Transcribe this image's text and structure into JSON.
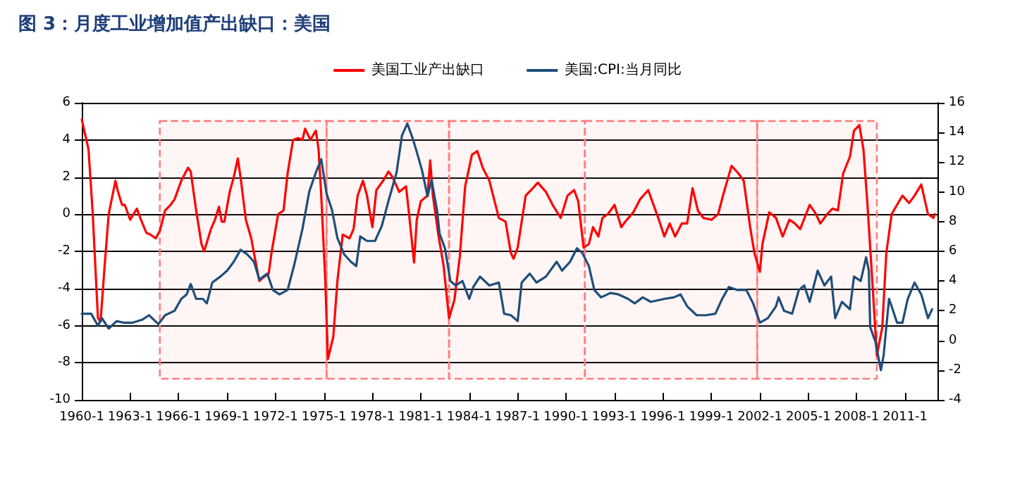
{
  "chart_data": {
    "type": "line",
    "title": "图 3：月度工业增加值产出缺口：美国",
    "xlim": [
      "1960-01",
      "2013-01"
    ],
    "xticks": [
      {
        "value": "1960-01",
        "label": "1960-1"
      },
      {
        "value": "1963-01",
        "label": "1963-1"
      },
      {
        "value": "1966-01",
        "label": "1966-1"
      },
      {
        "value": "1969-01",
        "label": "1969-1"
      },
      {
        "value": "1972-01",
        "label": "1972-1"
      },
      {
        "value": "1975-01",
        "label": "1975-1"
      },
      {
        "value": "1978-01",
        "label": "1978-1"
      },
      {
        "value": "1981-01",
        "label": "1981-1"
      },
      {
        "value": "1984-01",
        "label": "1984-1"
      },
      {
        "value": "1987-01",
        "label": "1987-1"
      },
      {
        "value": "1990-01",
        "label": "1990-1"
      },
      {
        "value": "1993-01",
        "label": "1993-1"
      },
      {
        "value": "1996-01",
        "label": "1996-1"
      },
      {
        "value": "1999-01",
        "label": "1999-1"
      },
      {
        "value": "2002-01",
        "label": "2002-1"
      },
      {
        "value": "2005-01",
        "label": "2005-1"
      },
      {
        "value": "2008-01",
        "label": "2008-1"
      },
      {
        "value": "2011-01",
        "label": "2011-1"
      }
    ],
    "ylim": [
      -10,
      6
    ],
    "yticks": [
      -10,
      -8,
      -6,
      -4,
      -2,
      0,
      2,
      4,
      6
    ],
    "y2lim": [
      -4,
      16
    ],
    "y2ticks": [
      -4,
      -2,
      0,
      2,
      4,
      6,
      8,
      10,
      12,
      14,
      16
    ],
    "grid": "y",
    "legend": "top",
    "marker": "none",
    "line_style": "solid",
    "bands": [
      {
        "axis": "x",
        "from": "1964-11",
        "to": "1975-03",
        "color": "#ff7f7f"
      },
      {
        "axis": "x",
        "from": "1975-03",
        "to": "1982-10",
        "color": "#ff7f7f"
      },
      {
        "axis": "x",
        "from": "1982-10",
        "to": "1991-03",
        "color": "#ff7f7f"
      },
      {
        "axis": "x",
        "from": "1991-03",
        "to": "2001-11",
        "color": "#ff7f7f"
      },
      {
        "axis": "x",
        "from": "2001-11",
        "to": "2009-04",
        "color": "#ff7f7f"
      }
    ],
    "series": [
      {
        "name": "美国工业产出缺口",
        "color": "#ff0000",
        "x": [
          "1960-01",
          "1960-06",
          "1960-09",
          "1961-01",
          "1961-03",
          "1961-06",
          "1961-09",
          "1962-02",
          "1962-04",
          "1962-07",
          "1962-09",
          "1963-01",
          "1963-06",
          "1963-09",
          "1964-01",
          "1964-04",
          "1964-08",
          "1964-11",
          "1965-03",
          "1965-07",
          "1965-10",
          "1966-03",
          "1966-08",
          "1966-10",
          "1967-02",
          "1967-06",
          "1967-08",
          "1968-01",
          "1968-04",
          "1968-07",
          "1968-09",
          "1968-11",
          "1969-03",
          "1969-06",
          "1969-09",
          "1969-11",
          "1970-03",
          "1970-07",
          "1970-09",
          "1971-01",
          "1971-04",
          "1971-08",
          "1971-10",
          "1972-03",
          "1972-07",
          "1972-10",
          "1973-02",
          "1973-06",
          "1973-09",
          "1973-11",
          "1974-03",
          "1974-07",
          "1974-09",
          "1974-11",
          "1975-02",
          "1975-04",
          "1975-08",
          "1975-11",
          "1976-03",
          "1976-08",
          "1976-11",
          "1977-02",
          "1977-06",
          "1977-09",
          "1978-01",
          "1978-04",
          "1978-09",
          "1979-01",
          "1979-04",
          "1979-09",
          "1980-02",
          "1980-04",
          "1980-08",
          "1980-10",
          "1981-01",
          "1981-06",
          "1981-08",
          "1981-10",
          "1982-02",
          "1982-06",
          "1982-10",
          "1983-02",
          "1983-06",
          "1983-10",
          "1984-03",
          "1984-07",
          "1984-11",
          "1985-04",
          "1985-11",
          "1986-04",
          "1986-08",
          "1986-10",
          "1987-01",
          "1987-07",
          "1987-11",
          "1988-04",
          "1988-10",
          "1989-03",
          "1989-09",
          "1990-02",
          "1990-07",
          "1990-10",
          "1991-02",
          "1991-06",
          "1991-09",
          "1992-01",
          "1992-04",
          "1992-08",
          "1993-01",
          "1993-06",
          "1993-09",
          "1994-03",
          "1994-08",
          "1995-02",
          "1995-06",
          "1995-10",
          "1996-02",
          "1996-06",
          "1996-10",
          "1997-03",
          "1997-07",
          "1997-11",
          "1998-03",
          "1998-07",
          "1999-01",
          "1999-06",
          "1999-10",
          "2000-04",
          "2000-09",
          "2001-01",
          "2001-06",
          "2001-09",
          "2002-01",
          "2002-03",
          "2002-08",
          "2003-01",
          "2003-06",
          "2003-11",
          "2004-03",
          "2004-07",
          "2005-02",
          "2005-06",
          "2005-10",
          "2006-03",
          "2006-07",
          "2006-11",
          "2007-03",
          "2007-08",
          "2007-11",
          "2008-03",
          "2008-06",
          "2008-09",
          "2009-01",
          "2009-04",
          "2009-08",
          "2009-11",
          "2010-03",
          "2010-07",
          "2010-11",
          "2011-04",
          "2011-08",
          "2012-01",
          "2012-06",
          "2012-10",
          "2012-11"
        ],
        "values": [
          5.1,
          3.5,
          0.2,
          -5.6,
          -5.8,
          -2.8,
          0,
          1.8,
          1.2,
          0.5,
          0.5,
          -0.3,
          0.3,
          -0.3,
          -1.0,
          -1.1,
          -1.3,
          -0.9,
          0.2,
          0.5,
          0.8,
          1.8,
          2.5,
          2.3,
          0.2,
          -1.6,
          -2.0,
          -0.8,
          -0.3,
          0.4,
          -0.4,
          -0.4,
          1.2,
          2.0,
          3.0,
          2.0,
          -0.3,
          -1.3,
          -2.1,
          -3.6,
          -3.4,
          -3.2,
          -2.1,
          0,
          0.2,
          2.2,
          4.0,
          4.1,
          4.0,
          4.6,
          4.0,
          4.5,
          3.5,
          1.0,
          -3.6,
          -7.8,
          -6.6,
          -3.6,
          -1.1,
          -1.3,
          -0.8,
          1.0,
          1.8,
          1.0,
          -0.7,
          1.3,
          1.8,
          2.3,
          2.0,
          1.2,
          1.5,
          0.2,
          -2.6,
          -0.3,
          0.7,
          1.0,
          2.9,
          1.0,
          -1.1,
          -2.8,
          -5.6,
          -4.6,
          -2.3,
          1.5,
          3.2,
          3.4,
          2.5,
          1.8,
          -0.2,
          -0.4,
          -2.1,
          -2.4,
          -1.8,
          1.0,
          1.3,
          1.7,
          1.2,
          0.5,
          -0.2,
          1.0,
          1.3,
          0.7,
          -1.8,
          -1.6,
          -0.7,
          -1.2,
          -0.2,
          0.0,
          0.5,
          -0.7,
          -0.4,
          0.1,
          0.8,
          1.3,
          0.5,
          -0.3,
          -1.2,
          -0.5,
          -1.2,
          -0.5,
          -0.5,
          1.4,
          0.2,
          -0.2,
          -0.3,
          0.0,
          1.1,
          2.6,
          2.2,
          1.8,
          -0.8,
          -2.1,
          -3.1,
          -1.6,
          0.1,
          -0.2,
          -1.2,
          -0.3,
          -0.5,
          -0.8,
          0.5,
          0.1,
          -0.5,
          0.0,
          0.3,
          0.2,
          2.2,
          3.1,
          4.5,
          4.8,
          3.5,
          0.5,
          -4.1,
          -7.6,
          -6.1,
          -2.1,
          0.0,
          0.5,
          1.0,
          0.6,
          1.0,
          1.6,
          0.0,
          -0.2,
          0.0
        ]
      },
      {
        "name": "美国:CPI:当月同比",
        "color": "#1f4e79",
        "axis": "y2",
        "x": [
          "1960-01",
          "1960-08",
          "1961-01",
          "1961-04",
          "1961-09",
          "1962-03",
          "1962-08",
          "1963-03",
          "1963-10",
          "1964-03",
          "1964-10",
          "1965-03",
          "1965-10",
          "1966-03",
          "1966-07",
          "1966-10",
          "1967-02",
          "1967-07",
          "1967-10",
          "1968-02",
          "1968-08",
          "1969-01",
          "1969-06",
          "1969-11",
          "1970-04",
          "1970-09",
          "1971-01",
          "1971-07",
          "1971-11",
          "1972-04",
          "1972-10",
          "1973-03",
          "1973-09",
          "1974-02",
          "1974-07",
          "1974-11",
          "1975-03",
          "1975-07",
          "1975-11",
          "1976-04",
          "1976-09",
          "1977-01",
          "1977-04",
          "1977-09",
          "1978-03",
          "1978-08",
          "1979-01",
          "1979-07",
          "1979-11",
          "1980-03",
          "1980-07",
          "1980-10",
          "1981-02",
          "1981-06",
          "1981-09",
          "1982-01",
          "1982-03",
          "1982-07",
          "1982-11",
          "1983-03",
          "1983-08",
          "1984-01",
          "1984-04",
          "1984-09",
          "1985-04",
          "1985-11",
          "1986-03",
          "1986-08",
          "1987-01",
          "1987-04",
          "1987-10",
          "1988-03",
          "1988-10",
          "1989-06",
          "1989-10",
          "1990-04",
          "1990-09",
          "1991-01",
          "1991-06",
          "1991-10",
          "1992-03",
          "1992-10",
          "1993-04",
          "1993-11",
          "1994-04",
          "1994-10",
          "1995-04",
          "1996-02",
          "1996-09",
          "1997-02",
          "1997-07",
          "1998-02",
          "1998-09",
          "1999-04",
          "1999-09",
          "2000-02",
          "2000-08",
          "2001-03",
          "2001-08",
          "2002-01",
          "2002-07",
          "2003-01",
          "2003-03",
          "2003-07",
          "2004-01",
          "2004-06",
          "2004-10",
          "2005-02",
          "2005-08",
          "2006-01",
          "2006-06",
          "2006-09",
          "2007-02",
          "2007-08",
          "2007-11",
          "2008-04",
          "2008-08",
          "2008-10",
          "2008-11",
          "2009-03",
          "2009-07",
          "2009-09",
          "2010-01",
          "2010-03",
          "2010-07",
          "2010-11",
          "2011-03",
          "2011-08",
          "2012-01",
          "2012-06",
          "2012-09"
        ],
        "values": [
          1.8,
          1.8,
          1.0,
          1.5,
          0.8,
          1.3,
          1.2,
          1.2,
          1.4,
          1.7,
          1.1,
          1.7,
          2.0,
          2.8,
          3.1,
          3.8,
          2.8,
          2.8,
          2.5,
          3.9,
          4.3,
          4.7,
          5.3,
          6.1,
          5.8,
          5.3,
          4.1,
          4.5,
          3.4,
          3.1,
          3.4,
          5.1,
          7.5,
          10.0,
          11.3,
          12.2,
          9.9,
          8.8,
          6.9,
          5.8,
          5.3,
          5.0,
          7.0,
          6.7,
          6.7,
          7.7,
          9.4,
          11.3,
          13.8,
          14.6,
          13.6,
          12.7,
          11.4,
          9.7,
          10.8,
          8.8,
          7.2,
          6.2,
          4.0,
          3.7,
          4.0,
          2.8,
          3.6,
          4.3,
          3.7,
          3.9,
          1.8,
          1.7,
          1.3,
          3.9,
          4.5,
          3.9,
          4.3,
          5.3,
          4.7,
          5.3,
          6.2,
          5.9,
          5.0,
          3.4,
          2.9,
          3.2,
          3.1,
          2.8,
          2.5,
          2.9,
          2.6,
          2.8,
          2.9,
          3.1,
          2.3,
          1.7,
          1.7,
          1.8,
          2.8,
          3.6,
          3.4,
          3.4,
          2.5,
          1.2,
          1.5,
          2.3,
          2.9,
          2.0,
          1.8,
          3.4,
          3.7,
          2.6,
          4.7,
          3.7,
          4.3,
          1.5,
          2.6,
          2.1,
          4.3,
          4.0,
          5.6,
          4.7,
          0.9,
          -0.1,
          -2.0,
          -1.0,
          2.8,
          2.3,
          1.2,
          1.2,
          2.8,
          3.9,
          3.1,
          1.5,
          2.1
        ]
      }
    ]
  }
}
